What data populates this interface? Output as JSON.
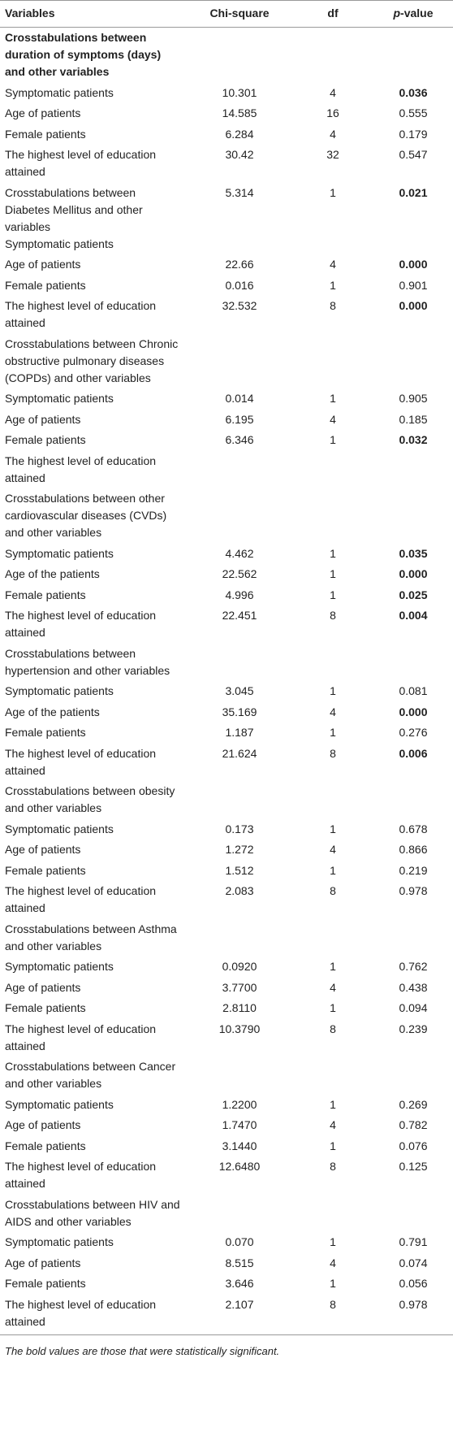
{
  "table": {
    "header": [
      "Variables",
      "Chi-square",
      "df",
      [
        "p",
        "-value"
      ]
    ],
    "rows": [
      {
        "cells": [
          "Crosstabulations between duration of symptoms (days) and other variables",
          null,
          null,
          null
        ],
        "bold": true
      },
      {
        "cells": [
          "Symptomatic patients",
          "10.301",
          "4",
          "0.036"
        ],
        "p_bold": true
      },
      {
        "cells": [
          "Age of patients",
          "14.585",
          "16",
          "0.555"
        ]
      },
      {
        "cells": [
          "Female patients",
          "6.284",
          "4",
          "0.179"
        ]
      },
      {
        "cells": [
          "The highest level of education attained",
          "30.42",
          "32",
          "0.547"
        ]
      },
      {
        "cells": [
          "Crosstabulations between Diabetes Mellitus and other variables\nSymptomatic patients",
          "5.314",
          "1",
          "0.021"
        ],
        "p_bold": true
      },
      {
        "cells": [
          "Age of patients",
          "22.66",
          "4",
          "0.000"
        ],
        "p_bold": true
      },
      {
        "cells": [
          "Female patients",
          "0.016",
          "1",
          "0.901"
        ]
      },
      {
        "cells": [
          "The highest level of education attained",
          "32.532",
          "8",
          "0.000"
        ],
        "p_bold": true
      },
      {
        "cells": [
          "Crosstabulations between Chronic obstructive pulmonary diseases (COPDs) and other variables",
          null,
          null,
          null
        ]
      },
      {
        "cells": [
          "Symptomatic patients",
          "0.014",
          "1",
          "0.905"
        ]
      },
      {
        "cells": [
          "Age of patients",
          "6.195",
          "4",
          "0.185"
        ]
      },
      {
        "cells": [
          "Female patients",
          "6.346",
          "1",
          "0.032"
        ],
        "p_bold": true
      },
      {
        "cells": [
          "The highest level of education attained",
          null,
          null,
          null
        ]
      },
      {
        "cells": [
          "Crosstabulations between other cardiovascular diseases (CVDs) and other variables",
          null,
          null,
          null
        ]
      },
      {
        "cells": [
          "Symptomatic patients",
          "4.462",
          "1",
          "0.035"
        ],
        "p_bold": true
      },
      {
        "cells": [
          "Age of the patients",
          "22.562",
          "1",
          "0.000"
        ],
        "p_bold": true
      },
      {
        "cells": [
          "Female patients",
          "4.996",
          "1",
          "0.025"
        ],
        "p_bold": true
      },
      {
        "cells": [
          "The highest level of education attained",
          "22.451",
          "8",
          "0.004"
        ],
        "p_bold": true
      },
      {
        "cells": [
          "Crosstabulations between hypertension and other variables",
          null,
          null,
          null
        ]
      },
      {
        "cells": [
          "Symptomatic patients",
          "3.045",
          "1",
          "0.081"
        ]
      },
      {
        "cells": [
          "Age of the patients",
          "35.169",
          "4",
          "0.000"
        ],
        "p_bold": true
      },
      {
        "cells": [
          "Female patients",
          "1.187",
          "1",
          "0.276"
        ]
      },
      {
        "cells": [
          "The highest level of education attained",
          "21.624",
          "8",
          "0.006"
        ],
        "p_bold": true
      },
      {
        "cells": [
          "Crosstabulations between obesity and other variables",
          null,
          null,
          null
        ]
      },
      {
        "cells": [
          "Symptomatic patients",
          "0.173",
          "1",
          "0.678"
        ]
      },
      {
        "cells": [
          "Age of patients",
          "1.272",
          "4",
          "0.866"
        ]
      },
      {
        "cells": [
          "Female patients",
          "1.512",
          "1",
          "0.219"
        ]
      },
      {
        "cells": [
          "The highest level of education attained",
          "2.083",
          "8",
          "0.978"
        ]
      },
      {
        "cells": [
          "Crosstabulations between Asthma and other variables",
          null,
          null,
          null
        ]
      },
      {
        "cells": [
          "Symptomatic patients",
          "0.0920",
          "1",
          "0.762"
        ]
      },
      {
        "cells": [
          "Age of patients",
          "3.7700",
          "4",
          "0.438"
        ]
      },
      {
        "cells": [
          "Female patients",
          "2.8110",
          "1",
          "0.094"
        ]
      },
      {
        "cells": [
          "The highest level of education attained",
          "10.3790",
          "8",
          "0.239"
        ]
      },
      {
        "cells": [
          "Crosstabulations between Cancer and other variables",
          null,
          null,
          null
        ]
      },
      {
        "cells": [
          "Symptomatic patients",
          "1.2200",
          "1",
          "0.269"
        ]
      },
      {
        "cells": [
          "Age of patients",
          "1.7470",
          "4",
          "0.782"
        ]
      },
      {
        "cells": [
          "Female patients",
          "3.1440",
          "1",
          "0.076"
        ]
      },
      {
        "cells": [
          "The highest level of education attained",
          "12.6480",
          "8",
          "0.125"
        ]
      },
      {
        "cells": [
          "Crosstabulations between HIV and AIDS and other variables",
          null,
          null,
          null
        ]
      },
      {
        "cells": [
          "Symptomatic patients",
          "0.070",
          "1",
          "0.791"
        ]
      },
      {
        "cells": [
          "Age of patients",
          "8.515",
          "4",
          "0.074"
        ]
      },
      {
        "cells": [
          "Female patients",
          "3.646",
          "1",
          "0.056"
        ]
      },
      {
        "cells": [
          "The highest level of education attained",
          "2.107",
          "8",
          "0.978"
        ]
      }
    ],
    "footnote": "The bold values are those that were statistically significant."
  }
}
